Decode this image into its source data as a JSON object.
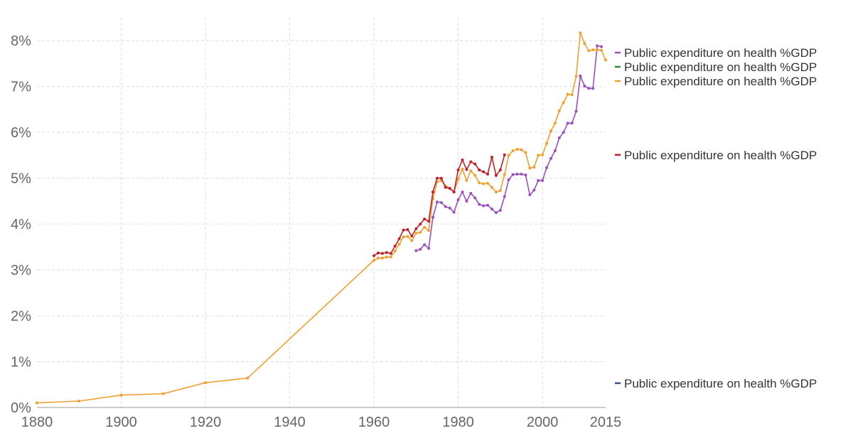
{
  "chart_data": {
    "type": "line",
    "title": "",
    "xlabel": "",
    "ylabel": "",
    "xlim": [
      1880,
      2015
    ],
    "ylim": [
      0,
      8.5
    ],
    "y_ticks": [
      0,
      1,
      2,
      3,
      4,
      5,
      6,
      7,
      8
    ],
    "y_tick_labels": [
      "0%",
      "1%",
      "2%",
      "3%",
      "4%",
      "5%",
      "6%",
      "7%",
      "8%"
    ],
    "x_ticks": [
      1880,
      1900,
      1920,
      1940,
      1960,
      1980,
      2000,
      2015
    ],
    "x_tick_labels": [
      "1880",
      "1900",
      "1920",
      "1940",
      "1960",
      "1980",
      "2000",
      "2015"
    ],
    "grid": true,
    "legend_placement": "right",
    "series": [
      {
        "name": "Public expenditure on health %GDP",
        "color": "#9b4fc0",
        "x": [
          1970,
          1971,
          1972,
          1973,
          1974,
          1975,
          1976,
          1977,
          1978,
          1979,
          1980,
          1981,
          1982,
          1983,
          1984,
          1985,
          1986,
          1987,
          1988,
          1989,
          1990,
          1991,
          1992,
          1993,
          1994,
          1995,
          1996,
          1997,
          1998,
          1999,
          2000,
          2001,
          2002,
          2003,
          2004,
          2005,
          2006,
          2007,
          2008,
          2009,
          2010,
          2011,
          2012,
          2013,
          2014
        ],
        "y": [
          3.42,
          3.45,
          3.55,
          3.47,
          4.15,
          4.48,
          4.47,
          4.38,
          4.35,
          4.26,
          4.53,
          4.7,
          4.5,
          4.67,
          4.57,
          4.43,
          4.4,
          4.41,
          4.33,
          4.25,
          4.3,
          4.6,
          4.97,
          5.08,
          5.09,
          5.09,
          5.07,
          4.64,
          4.74,
          4.95,
          4.95,
          5.23,
          5.43,
          5.6,
          5.88,
          6.0,
          6.2,
          6.2,
          6.46,
          7.23,
          7.01,
          6.96,
          6.96,
          7.89,
          7.87
        ]
      },
      {
        "name": "Public expenditure on health %GDP",
        "color": "#2e8b3a",
        "x": [],
        "y": []
      },
      {
        "name": "Public expenditure on health %GDP",
        "color": "#f0a030",
        "x": [
          1880,
          1890,
          1900,
          1910,
          1920,
          1930,
          1960,
          1961,
          1962,
          1963,
          1964,
          1965,
          1966,
          1967,
          1968,
          1969,
          1970,
          1971,
          1972,
          1973,
          1974,
          1975,
          1976,
          1977,
          1978,
          1979,
          1980,
          1981,
          1982,
          1983,
          1984,
          1985,
          1986,
          1987,
          1988,
          1989,
          1990,
          1991,
          1992,
          1993,
          1994,
          1995,
          1996,
          1997,
          1998,
          1999,
          2000,
          2001,
          2002,
          2003,
          2004,
          2005,
          2006,
          2007,
          2008,
          2009,
          2010,
          2011,
          2012,
          2013,
          2014,
          2015
        ],
        "y": [
          0.1,
          0.14,
          0.27,
          0.3,
          0.54,
          0.64,
          3.21,
          3.26,
          3.26,
          3.28,
          3.28,
          3.41,
          3.56,
          3.72,
          3.73,
          3.64,
          3.8,
          3.82,
          3.93,
          3.86,
          4.55,
          4.92,
          4.95,
          4.83,
          4.78,
          4.7,
          4.98,
          5.2,
          4.95,
          5.16,
          5.06,
          4.9,
          4.88,
          4.89,
          4.8,
          4.7,
          4.73,
          5.08,
          5.5,
          5.6,
          5.63,
          5.62,
          5.56,
          5.22,
          5.24,
          5.5,
          5.51,
          5.76,
          6.03,
          6.2,
          6.47,
          6.65,
          6.83,
          6.82,
          7.22,
          8.17,
          7.94,
          7.78,
          7.8,
          7.8,
          7.79,
          7.58
        ]
      },
      {
        "name": "Public expenditure on health %GDP",
        "color": "#c0202a",
        "x": [
          1960,
          1961,
          1962,
          1963,
          1964,
          1965,
          1966,
          1967,
          1968,
          1969,
          1970,
          1971,
          1972,
          1973,
          1974,
          1975,
          1976,
          1977,
          1978,
          1979,
          1980,
          1981,
          1982,
          1983,
          1984,
          1985,
          1986,
          1987,
          1988,
          1989,
          1990,
          1991
        ],
        "y": [
          3.31,
          3.37,
          3.36,
          3.38,
          3.36,
          3.52,
          3.68,
          3.87,
          3.88,
          3.74,
          3.9,
          4.0,
          4.11,
          4.06,
          4.7,
          5.0,
          5.0,
          4.8,
          4.78,
          4.7,
          5.18,
          5.4,
          5.19,
          5.36,
          5.31,
          5.18,
          5.14,
          5.09,
          5.46,
          5.06,
          5.18,
          5.51
        ]
      },
      {
        "name": "Public expenditure on health %GDP",
        "color": "#3d4fa0",
        "x": [],
        "y": []
      }
    ],
    "legend_anchor_values": [
      7.74,
      7.43,
      7.12,
      5.51,
      0.53
    ]
  }
}
